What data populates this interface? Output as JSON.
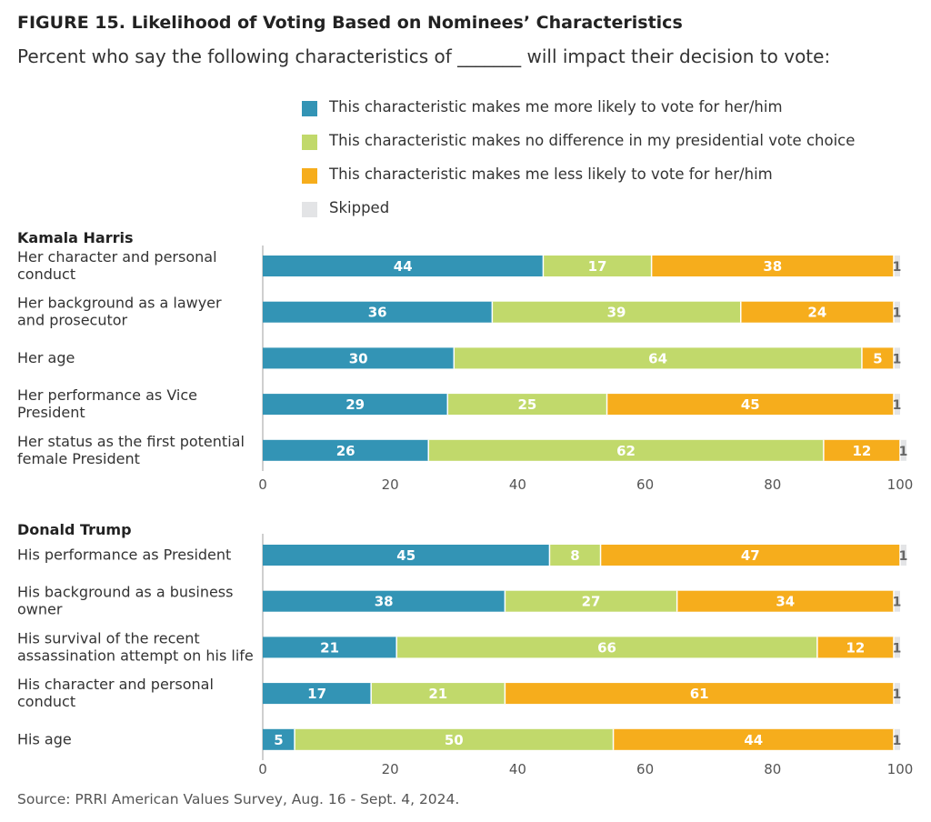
{
  "title": "FIGURE 15.  Likelihood of Voting Based on Nominees’ Characteristics",
  "subtitle": "Percent who say the following characteristics of _______ will impact their decision to vote:",
  "source": "Source: PRRI American Values Survey, Aug. 16 - Sept. 4, 2024.",
  "colors": {
    "more": "#3394b5",
    "nodiff": "#c1d96b",
    "less": "#f6ad1c",
    "skipped": "#e3e4e6"
  },
  "legend": [
    {
      "label": "This characteristic makes me more likely to vote for her/him",
      "color": "#3394b5"
    },
    {
      "label": "This characteristic makes no difference in my presidential vote choice",
      "color": "#c1d96b"
    },
    {
      "label": "This characteristic makes me less likely to vote for her/him",
      "color": "#f6ad1c"
    },
    {
      "label": "Skipped",
      "color": "#e3e4e6"
    }
  ],
  "chart_data": [
    {
      "type": "bar",
      "orientation": "horizontal",
      "stacked": true,
      "title": "Kamala Harris",
      "categories": [
        [
          "Her character and personal",
          "conduct"
        ],
        [
          "Her background as a lawyer",
          "and prosecutor"
        ],
        [
          "Her age"
        ],
        [
          "Her performance as Vice",
          "President"
        ],
        [
          "Her status as the first potential",
          "female President"
        ]
      ],
      "series": [
        {
          "name": "This characteristic makes me more likely to vote for her/him",
          "values": [
            44,
            36,
            30,
            29,
            26
          ]
        },
        {
          "name": "This characteristic makes no difference in my presidential vote choice",
          "values": [
            17,
            39,
            64,
            25,
            62
          ]
        },
        {
          "name": "This characteristic makes me less likely to vote for her/him",
          "values": [
            38,
            24,
            5,
            45,
            12
          ]
        },
        {
          "name": "Skipped",
          "values": [
            1,
            1,
            1,
            1,
            1
          ]
        }
      ],
      "xlim": [
        0,
        100
      ],
      "xticks": [
        "0",
        "20",
        "40",
        "60",
        "80",
        "100"
      ]
    },
    {
      "type": "bar",
      "orientation": "horizontal",
      "stacked": true,
      "title": "Donald Trump",
      "categories": [
        [
          "His performance as President"
        ],
        [
          "His background as a business",
          "owner"
        ],
        [
          "His survival of the recent",
          "assassination attempt on his life"
        ],
        [
          "His character and personal",
          "conduct"
        ],
        [
          "His age"
        ]
      ],
      "series": [
        {
          "name": "This characteristic makes me more likely to vote for her/him",
          "values": [
            45,
            38,
            21,
            17,
            5
          ]
        },
        {
          "name": "This characteristic makes no difference in my presidential vote choice",
          "values": [
            8,
            27,
            66,
            21,
            50
          ]
        },
        {
          "name": "This characteristic makes me less likely to vote for her/him",
          "values": [
            47,
            34,
            12,
            61,
            44
          ]
        },
        {
          "name": "Skipped",
          "values": [
            1,
            1,
            1,
            1,
            1
          ]
        }
      ],
      "xlim": [
        0,
        100
      ],
      "xticks": [
        "0",
        "20",
        "40",
        "60",
        "80",
        "100"
      ]
    }
  ]
}
